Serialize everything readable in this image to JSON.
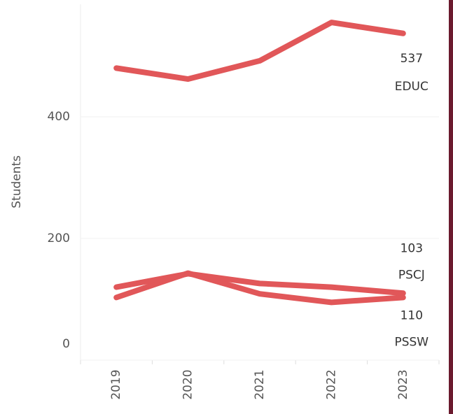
{
  "chart_data": {
    "type": "line",
    "y_label": "Students",
    "categories": [
      "2019",
      "2020",
      "2021",
      "2022",
      "2023"
    ],
    "series": [
      {
        "name": "EDUC",
        "color": "#e15759",
        "values": [
          480,
          462,
          492,
          555,
          537
        ]
      },
      {
        "name": "PSCJ",
        "color": "#e15759",
        "values": [
          103,
          143,
          109,
          95,
          103
        ]
      },
      {
        "name": "PSSW",
        "color": "#e15759",
        "values": [
          120,
          142,
          126,
          120,
          110
        ]
      }
    ],
    "ylim": [
      0,
      585
    ],
    "yticks": [
      0,
      200,
      400
    ],
    "grid": true
  }
}
